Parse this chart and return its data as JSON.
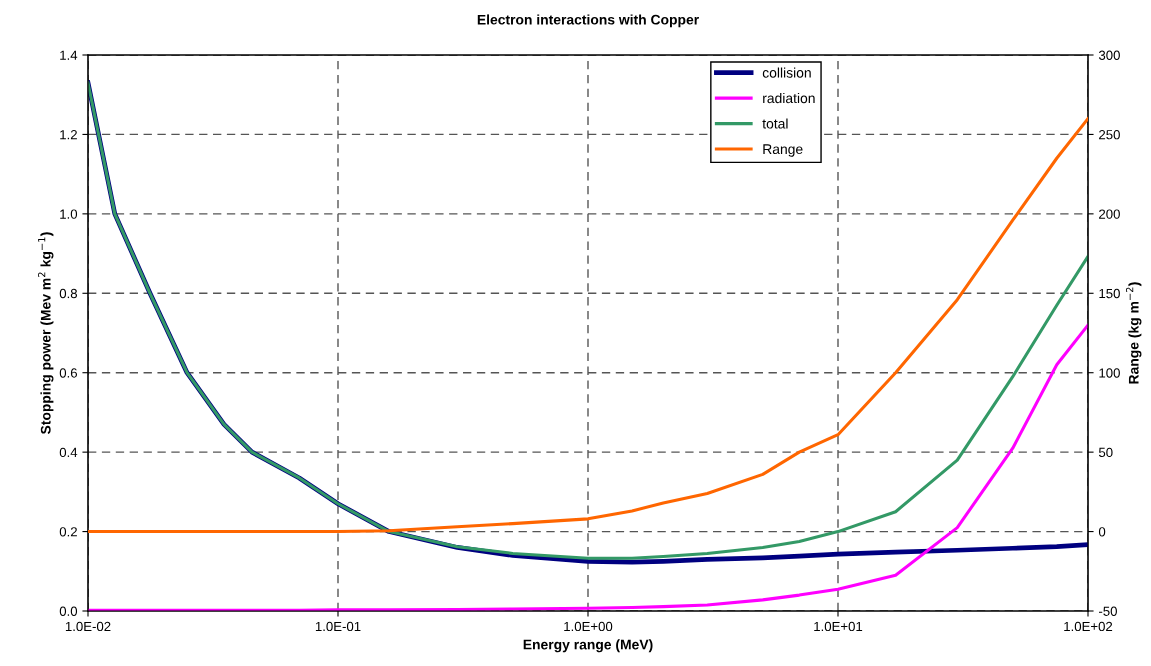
{
  "chart_data": {
    "type": "line",
    "title": "Electron interactions with Copper",
    "xlabel": "Energy range (MeV)",
    "ylabel": "Stopping power (Mev m$^{2}$ kg$^{−1}$)",
    "y2label": "Range (kg m$^{−2}$)",
    "log": "x",
    "x": [
      0.01,
      0.0128,
      0.0177,
      0.0249,
      0.035,
      0.0453,
      0.07,
      0.1,
      0.16,
      0.3,
      0.5,
      1,
      1.5,
      2,
      3,
      5,
      7,
      10,
      17,
      30,
      50,
      75,
      100
    ],
    "series": [
      {
        "name": "collision",
        "color": "#000080",
        "values": [
          1.33,
          1.0,
          0.8,
          0.6,
          0.47,
          0.4,
          0.335,
          0.27,
          0.2,
          0.16,
          0.14,
          0.125,
          0.123,
          0.125,
          0.13,
          0.134,
          0.138,
          0.143,
          0.148,
          0.153,
          0.158,
          0.162,
          0.167
        ]
      },
      {
        "name": "radiation",
        "color": "#ff00ff",
        "values": [
          0.002,
          0.002,
          0.002,
          0.002,
          0.002,
          0.002,
          0.002,
          0.003,
          0.003,
          0.004,
          0.005,
          0.007,
          0.009,
          0.011,
          0.015,
          0.028,
          0.04,
          0.055,
          0.09,
          0.21,
          0.41,
          0.62,
          0.72
        ]
      },
      {
        "name": "total",
        "color": "#339966",
        "values": [
          1.33,
          1.0,
          0.8,
          0.6,
          0.47,
          0.4,
          0.335,
          0.27,
          0.2,
          0.162,
          0.145,
          0.133,
          0.133,
          0.137,
          0.145,
          0.16,
          0.175,
          0.2,
          0.25,
          0.38,
          0.59,
          0.77,
          0.893
        ]
      },
      {
        "name": "Range",
        "color": "#ff6600",
        "axis": "y2",
        "values": [
          0,
          0,
          0,
          0,
          0,
          0,
          0,
          0,
          0.5,
          3,
          5,
          8,
          13,
          18,
          24,
          36,
          50,
          61,
          100,
          146,
          196,
          235,
          260
        ]
      }
    ],
    "xlim": [
      0.01,
      100
    ],
    "xticks": [
      {
        "value": 0.01,
        "label": "1.0E-02"
      },
      {
        "value": 0.1,
        "label": "1.0E-01"
      },
      {
        "value": 1,
        "label": "1.0E+00"
      },
      {
        "value": 10,
        "label": "1.0E+01"
      },
      {
        "value": 100,
        "label": "1.0E+02"
      }
    ],
    "ylim": [
      0,
      1.4
    ],
    "yticks": [
      {
        "value": 0,
        "label": "0.0"
      },
      0.2,
      0.4,
      0.6,
      0.8,
      {
        "value": 1,
        "label": "1.0"
      },
      1.2,
      1.4
    ],
    "y2lim": [
      -50,
      300
    ],
    "y2ticks": [
      -50,
      0,
      50,
      100,
      150,
      200,
      250,
      300
    ],
    "grid": true,
    "legend": "top right",
    "line_style": "solid",
    "marker": "none"
  }
}
